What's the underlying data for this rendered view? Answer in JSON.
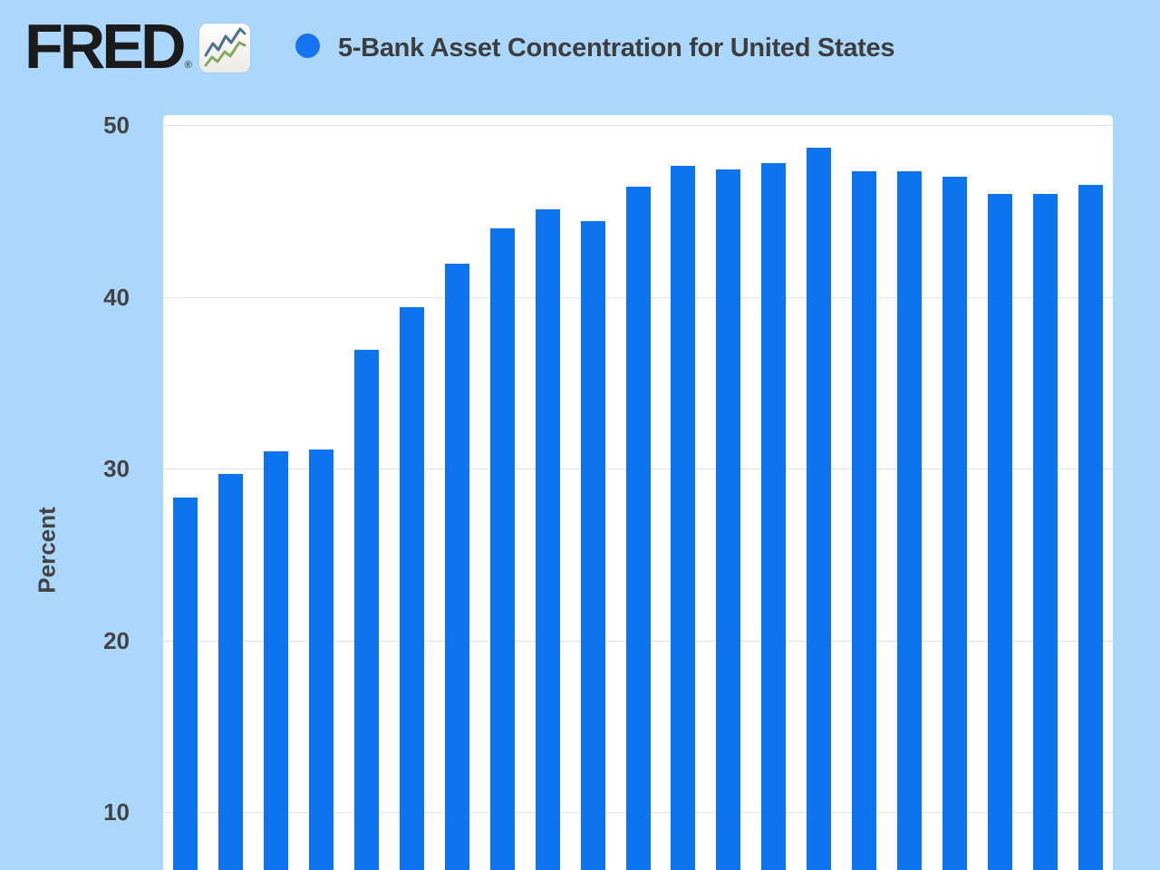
{
  "header": {
    "logo_text": "FRED",
    "registered_mark": "®",
    "title": "5-Bank Asset Concentration for United States"
  },
  "colors": {
    "page_background": "#aad7fb",
    "bar": "#0b74ee",
    "legend_dot": "#1673f2",
    "plot_background": "#ffffff",
    "gridline": "#e3e3e3",
    "title_text": "#3d3d3d",
    "axis_text": "#434343",
    "logo_icon_line_top": "#4a7390",
    "logo_icon_line_bottom": "#86a95f"
  },
  "chart": {
    "ylabel": "Percent",
    "yticks": [
      50,
      40,
      30,
      20,
      10
    ]
  },
  "chart_data": {
    "type": "bar",
    "title": "5-Bank Asset Concentration for United States",
    "ylabel": "Percent",
    "xlabel": "",
    "values": [
      28.3,
      29.7,
      31.0,
      31.1,
      36.9,
      39.4,
      41.9,
      44.0,
      45.1,
      44.4,
      46.4,
      47.6,
      47.4,
      47.8,
      48.7,
      47.3,
      47.3,
      47.0,
      46.0,
      46.0,
      46.5
    ],
    "yticks": [
      10,
      20,
      30,
      40,
      50
    ],
    "grid": "horizontal-only",
    "bar_color": "#0b74ee",
    "legend_position": "left-of-title",
    "x_axis_labels_visible": false,
    "ylim_visible": [
      6.9,
      50.6
    ]
  }
}
